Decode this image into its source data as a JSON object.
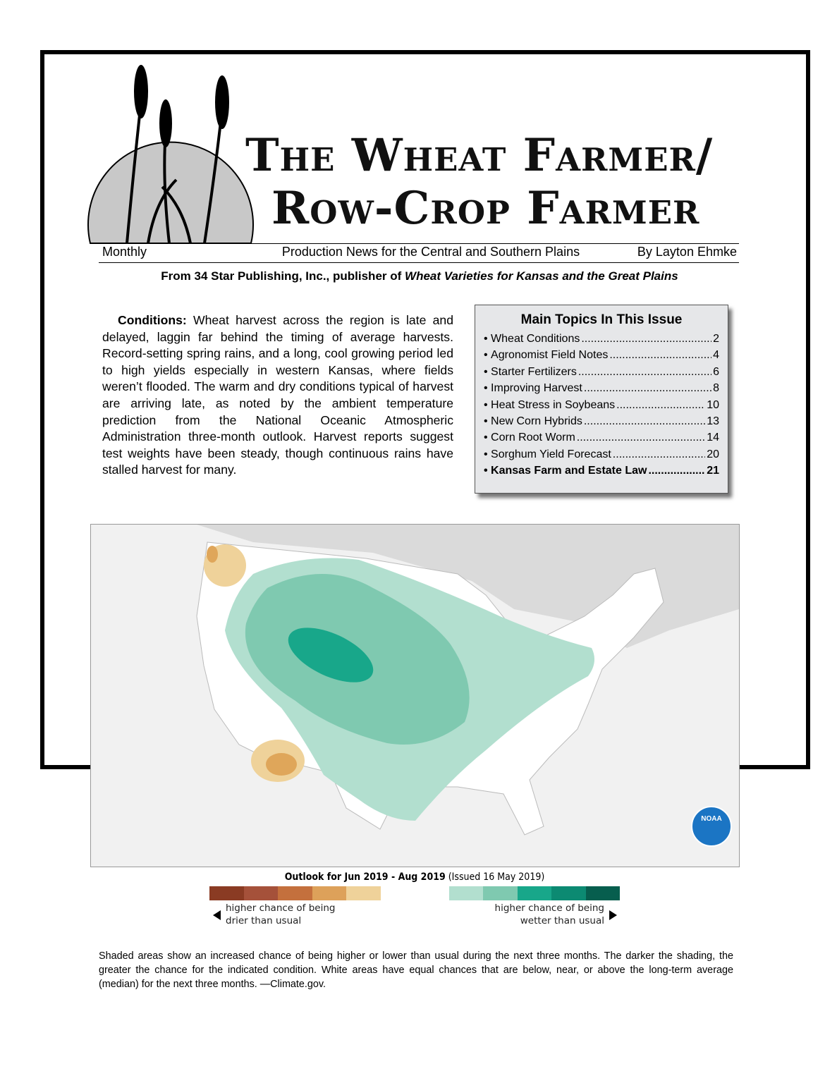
{
  "masthead": {
    "title_line1": "The Wheat Farmer/",
    "title_line2": "Row-Crop Farmer",
    "frequency": "Monthly",
    "tagline": "Production News for the Central and Southern Plains",
    "author": "By Layton Ehmke",
    "publisher_prefix": "From 34 Star Publishing, Inc., publisher of",
    "publisher_book": "Wheat Varieties for Kansas and the Great Plains"
  },
  "article": {
    "lead": "Conditions:",
    "body": "Wheat harvest across the region is late and delayed, laggin far behind the timing of average harvests. Record-setting spring rains, and a long, cool growing period led to high yields especially in western Kansas, where fields weren’t flooded. The warm and dry conditions typical of harvest are arriving late, as noted by the ambient temperature prediction from the National Oceanic Atmospheric Administration three-month outlook. Harvest reports suggest test weights have been steady, though continuous rains have stalled harvest for many."
  },
  "topics": {
    "title": "Main Topics In This Issue",
    "items": [
      {
        "label": "Wheat Conditions",
        "page": 2
      },
      {
        "label": "Agronomist Field Notes",
        "page": 4
      },
      {
        "label": "Starter Fertilizers",
        "page": 6
      },
      {
        "label": "Improving Harvest",
        "page": 8
      },
      {
        "label": "Heat Stress in Soybeans",
        "page": 10
      },
      {
        "label": "New Corn Hybrids",
        "page": 13
      },
      {
        "label": "Corn Root Worm",
        "page": 14
      },
      {
        "label": "Sorghum Yield Forecast",
        "page": 20
      },
      {
        "label": "Kansas Farm and Estate Law",
        "page": 21
      }
    ]
  },
  "map": {
    "caption": "Outlook for Jun 2019 - Aug 2019",
    "issued": "(Issued 16 May 2019)",
    "drier_label": [
      "higher chance of being",
      "drier than usual"
    ],
    "wetter_label": [
      "higher chance of being",
      "wetter than usual"
    ],
    "logo": "NOAA"
  },
  "footnote": "Shaded areas show an increased chance of being higher or lower than usual during the next three months. The darker the shading, the greater the chance for the indicated condition. White areas have equal chances that are below, near, or above the long-term average (median) for the next three months. —Climate.gov."
}
